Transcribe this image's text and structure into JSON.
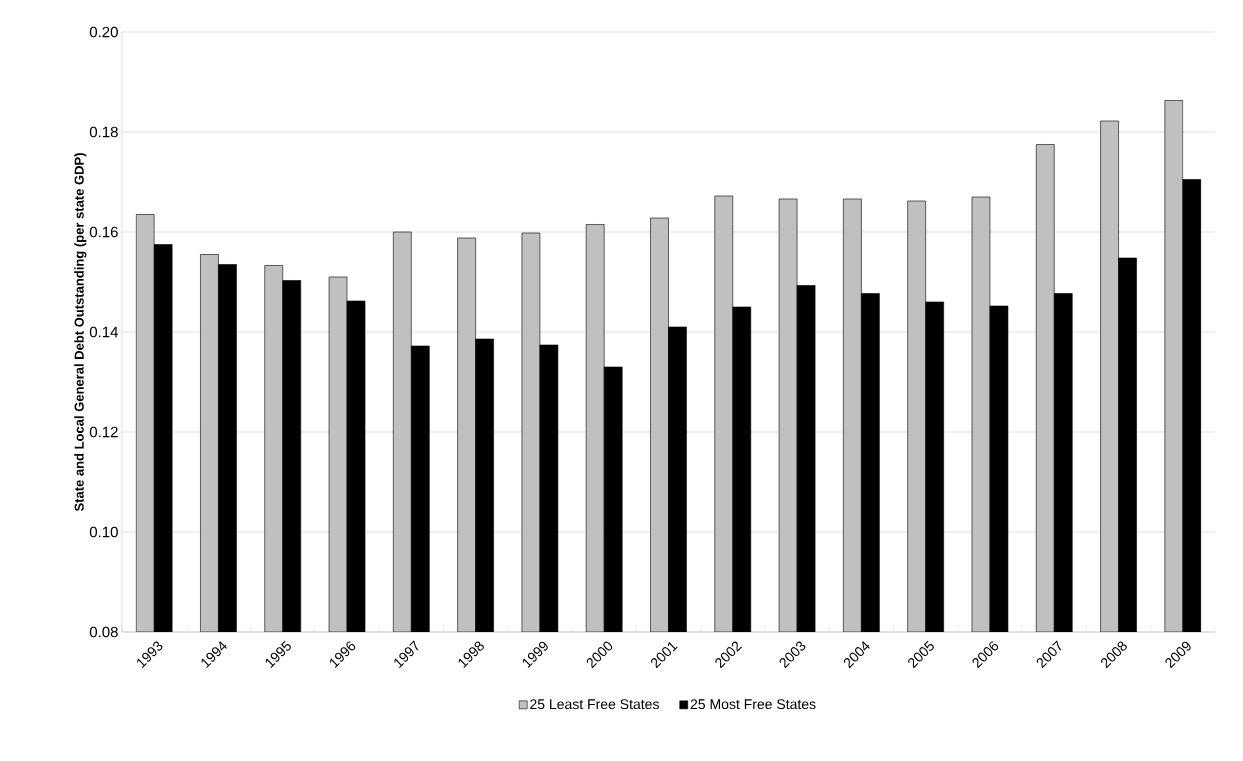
{
  "chart_data": {
    "type": "bar",
    "ylabel": "State and Local General Debt Outstanding (per state GDP)",
    "categories": [
      "1993",
      "1994",
      "1995",
      "1996",
      "1997",
      "1998",
      "1999",
      "2000",
      "2001",
      "2002",
      "2003",
      "2004",
      "2005",
      "2006",
      "2007",
      "2008",
      "2009"
    ],
    "series": [
      {
        "name": "25 Least Free States",
        "color": "#c0c0c0",
        "values": [
          0.1635,
          0.1555,
          0.1533,
          0.151,
          0.16,
          0.1588,
          0.1598,
          0.1615,
          0.1628,
          0.1672,
          0.1666,
          0.1666,
          0.1662,
          0.167,
          0.1775,
          0.1822,
          0.1863
        ]
      },
      {
        "name": "25 Most Free States",
        "color": "#000000",
        "values": [
          0.1575,
          0.1535,
          0.1503,
          0.1462,
          0.1372,
          0.1386,
          0.1374,
          0.133,
          0.141,
          0.145,
          0.1493,
          0.1477,
          0.146,
          0.1452,
          0.1477,
          0.1548,
          0.1705
        ]
      }
    ],
    "ylim": [
      0.08,
      0.2
    ],
    "yticks": [
      {
        "value": 0.08,
        "label": "0.08"
      },
      {
        "value": 0.1,
        "label": "0.10"
      },
      {
        "value": 0.12,
        "label": "0.12"
      },
      {
        "value": 0.14,
        "label": "0.14"
      },
      {
        "value": 0.16,
        "label": "0.16"
      },
      {
        "value": 0.18,
        "label": "0.18"
      },
      {
        "value": 0.2,
        "label": "0.20"
      }
    ],
    "grid": "y",
    "legend": "bottom"
  }
}
